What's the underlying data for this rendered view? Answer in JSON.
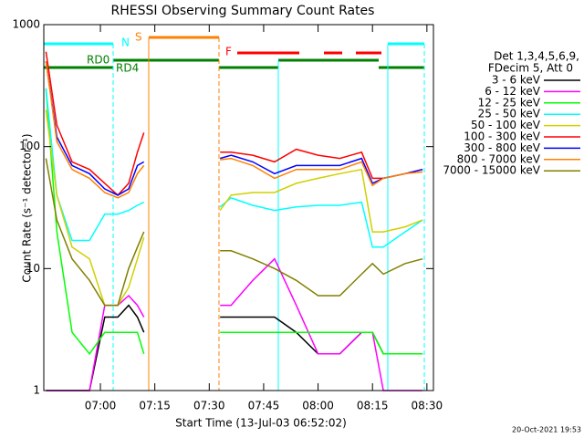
{
  "chart_data": {
    "type": "line",
    "title": "RHESSI Observing Summary Count Rates",
    "x_label": "Start Time (13-Jul-03 06:52:02)",
    "y_label": "Count Rate (s⁻¹ detector⁻¹)",
    "legend_title": [
      "Det 1,3,4,5,6,9,",
      "FDecim 5, Att 0"
    ],
    "annotations": [
      "N",
      "S",
      "F",
      "RD0",
      "RD4"
    ],
    "footer": "20-Oct-2021 19:53",
    "log_y": true,
    "xlim": [
      6.74,
      8.53
    ],
    "xticks": [
      {
        "value": 7.0,
        "label": "07:00"
      },
      {
        "value": 7.25,
        "label": "07:15"
      },
      {
        "value": 7.5,
        "label": "07:30"
      },
      {
        "value": 7.75,
        "label": "07:45"
      },
      {
        "value": 8.0,
        "label": "08:00"
      },
      {
        "value": 8.25,
        "label": "08:15"
      },
      {
        "value": 8.5,
        "label": "08:30"
      }
    ],
    "ylim": [
      1,
      1000
    ],
    "yticks": [
      1,
      10,
      100,
      1000
    ],
    "x": [
      6.75,
      6.8,
      6.87,
      6.95,
      7.02,
      7.08,
      7.13,
      7.17,
      7.2,
      7.35,
      7.55,
      7.6,
      7.7,
      7.8,
      7.9,
      8.0,
      8.1,
      8.2,
      8.25,
      8.3,
      8.4,
      8.48
    ],
    "series": [
      {
        "name": "3 - 6 keV",
        "color": "#000000",
        "values": [
          1,
          1,
          1,
          1,
          4,
          4,
          5,
          4,
          3,
          null,
          4,
          4,
          4,
          4,
          3,
          2,
          2,
          3,
          3,
          2,
          2,
          2
        ]
      },
      {
        "name": "6 - 12 keV",
        "color": "#ff00ff",
        "values": [
          1,
          1,
          1,
          1,
          5,
          5,
          6,
          5,
          4,
          null,
          5,
          5,
          8,
          12,
          5,
          2,
          2,
          3,
          3,
          1,
          1,
          1
        ]
      },
      {
        "name": "12 - 25 keV",
        "color": "#00ff00",
        "values": [
          300,
          20,
          3,
          2,
          3,
          3,
          3,
          3,
          2,
          null,
          3,
          3,
          3,
          3,
          3,
          3,
          3,
          3,
          3,
          2,
          2,
          2
        ]
      },
      {
        "name": "25 - 50 keV",
        "color": "#00ffff",
        "values": [
          300,
          40,
          17,
          17,
          28,
          28,
          30,
          33,
          35,
          null,
          32,
          38,
          33,
          30,
          32,
          33,
          33,
          35,
          15,
          15,
          20,
          25
        ]
      },
      {
        "name": "50 - 100 keV",
        "color": "#d0d000",
        "values": [
          200,
          40,
          15,
          12,
          5,
          5,
          7,
          12,
          18,
          null,
          30,
          40,
          42,
          42,
          50,
          55,
          60,
          65,
          20,
          20,
          22,
          25
        ]
      },
      {
        "name": "100 - 300 keV",
        "color": "#ff0000",
        "values": [
          600,
          150,
          75,
          65,
          50,
          40,
          50,
          90,
          130,
          null,
          90,
          90,
          85,
          75,
          95,
          85,
          80,
          90,
          55,
          55,
          60,
          65
        ]
      },
      {
        "name": "300 - 800 keV",
        "color": "#0000ff",
        "values": [
          500,
          120,
          70,
          60,
          45,
          40,
          45,
          70,
          75,
          null,
          80,
          85,
          75,
          60,
          70,
          70,
          70,
          80,
          50,
          55,
          60,
          65
        ]
      },
      {
        "name": "800 - 7000 keV",
        "color": "#ff8000",
        "values": [
          500,
          110,
          65,
          55,
          42,
          38,
          42,
          60,
          70,
          null,
          78,
          80,
          70,
          55,
          65,
          65,
          65,
          75,
          48,
          55,
          60,
          62
        ]
      },
      {
        "name": "7000 - 15000 keV",
        "color": "#808000",
        "values": [
          80,
          25,
          12,
          8,
          5,
          5,
          10,
          15,
          20,
          null,
          14,
          14,
          12,
          10,
          8,
          6,
          6,
          9,
          11,
          9,
          11,
          12
        ]
      }
    ]
  }
}
